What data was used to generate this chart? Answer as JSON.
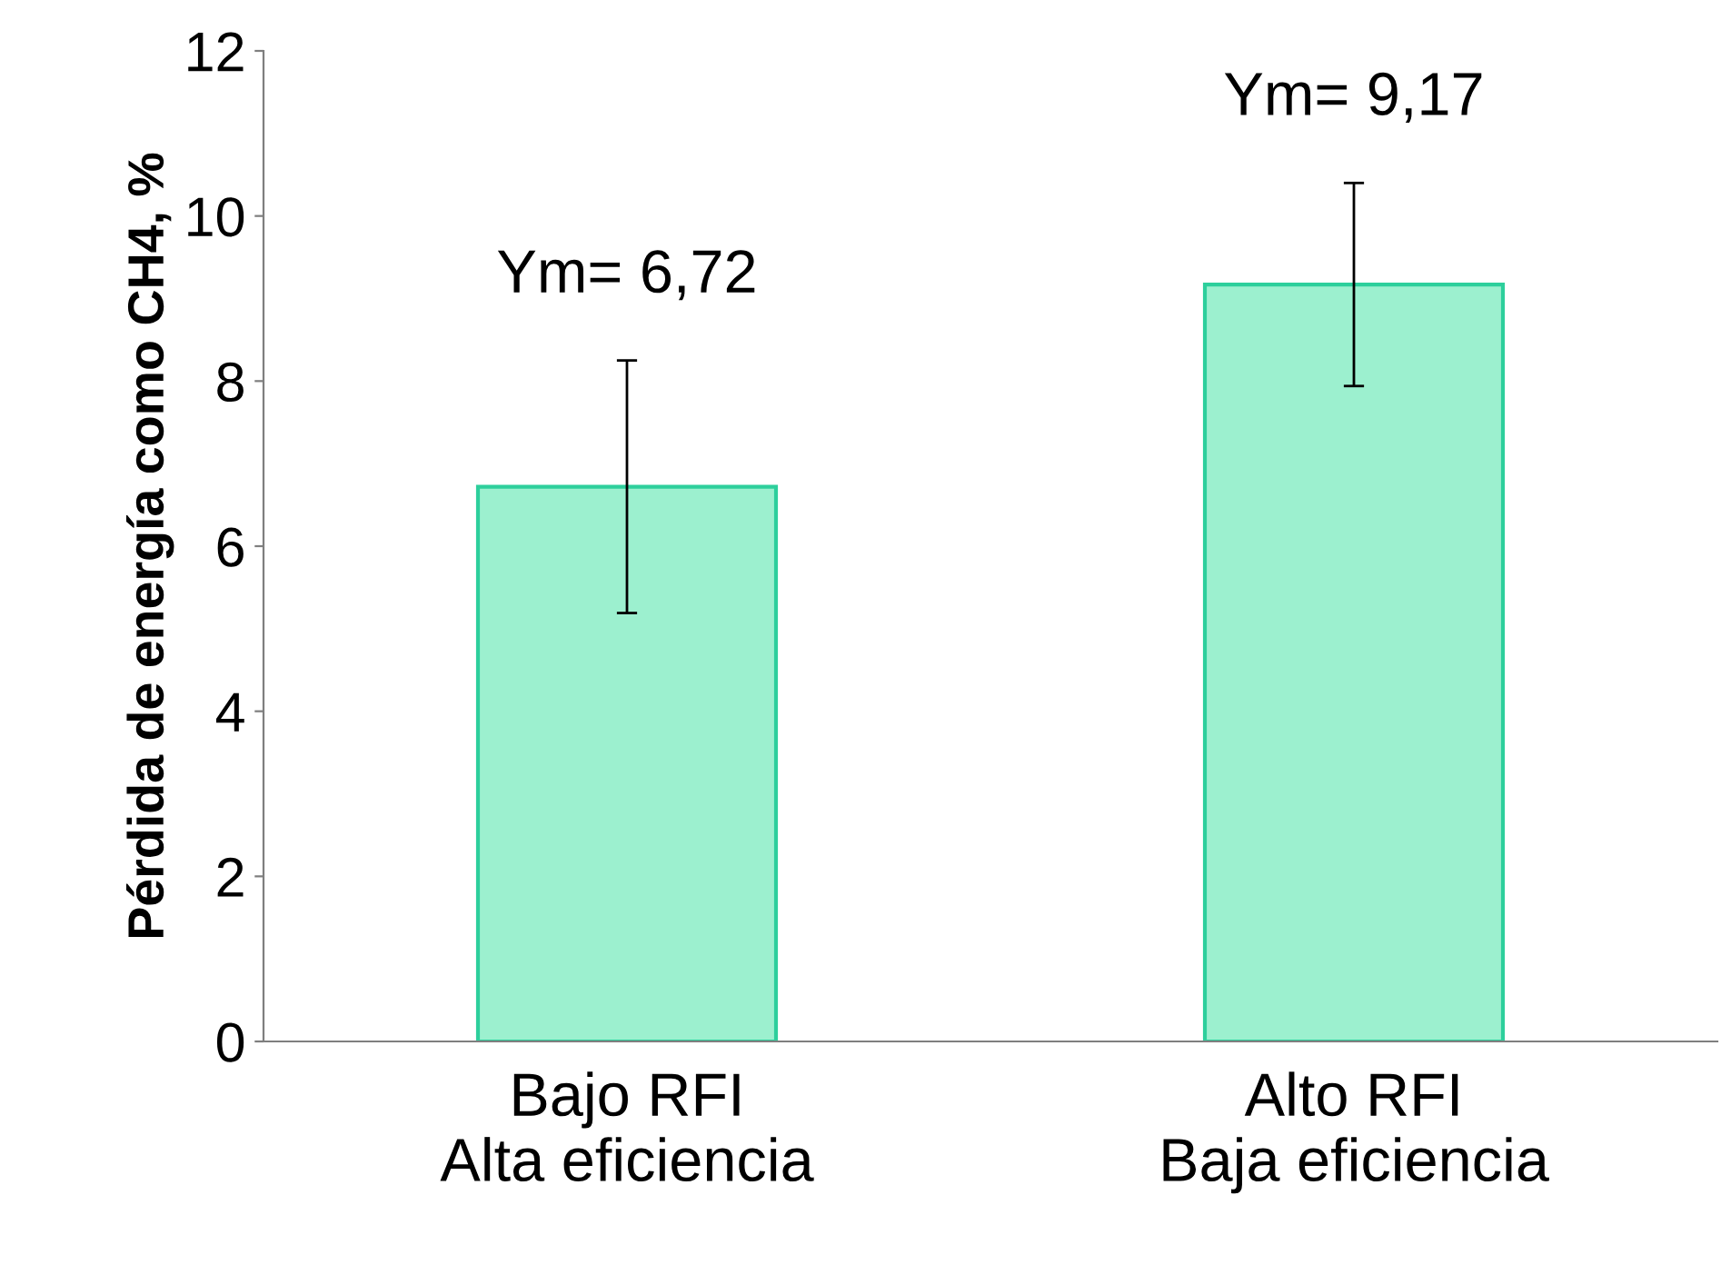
{
  "chart_data": {
    "type": "bar",
    "ylabel": "Pérdida de energía como CH4, %",
    "categories": [
      "Bajo RFI\nAlta eficiencia",
      "Alto RFI\nBaja eficiencia"
    ],
    "values": [
      6.72,
      9.17
    ],
    "errors": [
      1.53,
      1.23
    ],
    "value_labels": [
      "Ym= 6,72",
      "Ym= 9,17"
    ],
    "color": "#9cf0cf",
    "ylim": [
      0,
      12
    ],
    "yticks": [
      0,
      2,
      4,
      6,
      8,
      10,
      12
    ],
    "grid": false,
    "legend": false
  }
}
